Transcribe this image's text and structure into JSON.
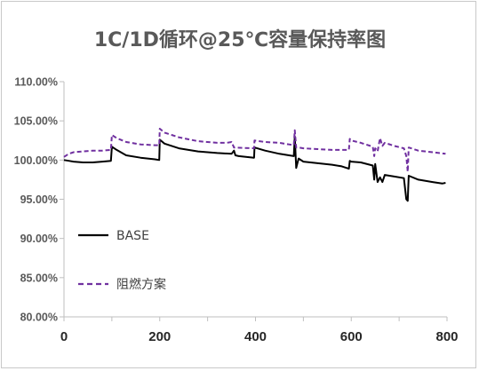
{
  "chart_data": {
    "type": "line",
    "title": "1C/1D循环@25℃容量保持率图",
    "xlabel": "",
    "ylabel": "",
    "xlim": [
      0,
      800
    ],
    "ylim": [
      0.8,
      1.1
    ],
    "x_ticks": [
      "0",
      "200",
      "400",
      "600",
      "800"
    ],
    "y_ticks": [
      "80.00%",
      "85.00%",
      "90.00%",
      "95.00%",
      "100.00%",
      "105.00%",
      "110.00%"
    ],
    "grid": false,
    "legend_position": "inside-left",
    "series": [
      {
        "name": "BASE",
        "color": "#000000",
        "style": "solid",
        "x": [
          0,
          10,
          20,
          40,
          60,
          80,
          98,
          100,
          110,
          130,
          160,
          190,
          199,
          200,
          210,
          240,
          280,
          320,
          350,
          355,
          358,
          365,
          380,
          397,
          398,
          420,
          450,
          470,
          480,
          482,
          485,
          490,
          500,
          530,
          560,
          580,
          595,
          597,
          600,
          620,
          645,
          648,
          650,
          655,
          660,
          665,
          670,
          690,
          710,
          715,
          718,
          720,
          740,
          770,
          790,
          797
        ],
        "y": [
          1.0,
          0.999,
          0.998,
          0.997,
          0.997,
          0.998,
          0.999,
          1.017,
          1.013,
          1.006,
          1.003,
          1.001,
          1.0,
          1.026,
          1.021,
          1.015,
          1.011,
          1.009,
          1.008,
          1.012,
          1.006,
          1.005,
          1.004,
          1.003,
          1.016,
          1.012,
          1.008,
          1.006,
          1.005,
          1.03,
          0.99,
          1.002,
          0.998,
          0.996,
          0.994,
          0.992,
          0.989,
          0.999,
          0.998,
          0.997,
          0.993,
          0.975,
          0.995,
          0.972,
          0.978,
          0.972,
          0.981,
          0.979,
          0.977,
          0.95,
          0.948,
          0.98,
          0.975,
          0.972,
          0.97,
          0.971
        ]
      },
      {
        "name": "阻燃方案",
        "color": "#7030a0",
        "style": "dashed",
        "x": [
          0,
          10,
          20,
          40,
          60,
          80,
          98,
          100,
          110,
          130,
          160,
          190,
          199,
          200,
          210,
          240,
          280,
          320,
          340,
          350,
          355,
          397,
          398,
          420,
          450,
          470,
          480,
          482,
          485,
          490,
          500,
          530,
          560,
          595,
          597,
          600,
          620,
          645,
          648,
          650,
          655,
          660,
          665,
          670,
          690,
          710,
          715,
          718,
          720,
          740,
          770,
          797
        ],
        "y": [
          1.004,
          1.008,
          1.01,
          1.011,
          1.012,
          1.012,
          1.013,
          1.032,
          1.028,
          1.023,
          1.02,
          1.019,
          1.019,
          1.04,
          1.035,
          1.029,
          1.024,
          1.022,
          1.022,
          1.023,
          1.016,
          1.015,
          1.025,
          1.023,
          1.022,
          1.02,
          1.019,
          1.038,
          1.016,
          1.016,
          1.015,
          1.014,
          1.013,
          1.013,
          1.027,
          1.025,
          1.022,
          1.017,
          1.005,
          1.015,
          1.011,
          1.028,
          1.018,
          1.022,
          1.018,
          1.015,
          1.005,
          0.985,
          1.016,
          1.012,
          1.01,
          1.008
        ]
      }
    ]
  }
}
